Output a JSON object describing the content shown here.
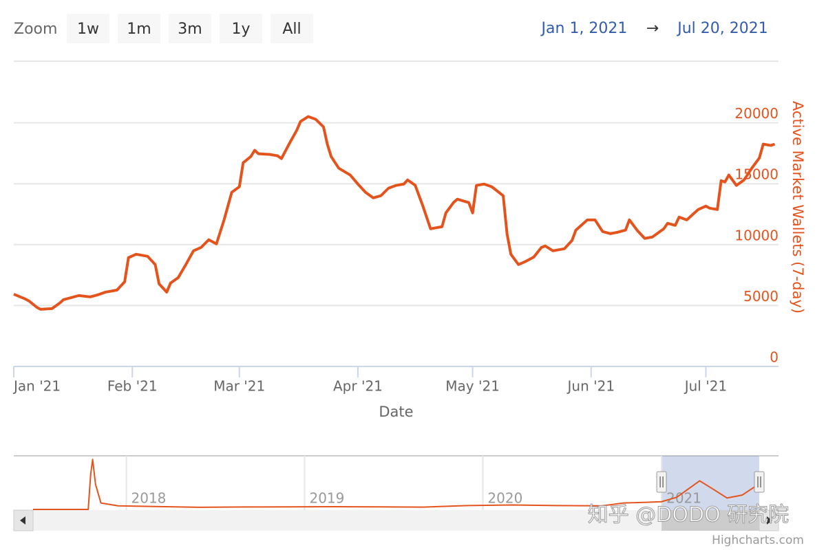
{
  "range_selector": {
    "zoom_label": "Zoom",
    "buttons": [
      "1w",
      "1m",
      "3m",
      "1y",
      "All"
    ],
    "from": "Jan 1, 2021",
    "arrow": "→",
    "to": "Jul 20, 2021"
  },
  "chart_data": [
    {
      "type": "line",
      "x_label": "Date",
      "y_label": "Active Market Wallets (7-day)",
      "y_axis_side": "right",
      "color": "#e5531d",
      "grid": true,
      "xlim": [
        "2021-01-01",
        "2021-07-20"
      ],
      "xticks": [
        {
          "value": "2021-01-01",
          "label": "Jan '21"
        },
        {
          "value": "2021-02-01",
          "label": "Feb '21"
        },
        {
          "value": "2021-03-01",
          "label": "Mar '21"
        },
        {
          "value": "2021-04-01",
          "label": "Apr '21"
        },
        {
          "value": "2021-05-01",
          "label": "May '21"
        },
        {
          "value": "2021-06-01",
          "label": "Jun '21"
        },
        {
          "value": "2021-07-01",
          "label": "Jul '21"
        }
      ],
      "ylim": [
        0,
        25000
      ],
      "yticks": [
        0,
        5000,
        10000,
        15000,
        20000
      ],
      "x": [
        "2021-01-01",
        "2021-01-04",
        "2021-01-05",
        "2021-01-07",
        "2021-01-08",
        "2021-01-11",
        "2021-01-13",
        "2021-01-14",
        "2021-01-18",
        "2021-01-21",
        "2021-01-23",
        "2021-01-25",
        "2021-01-28",
        "2021-01-30",
        "2021-01-31",
        "2021-02-02",
        "2021-02-05",
        "2021-02-07",
        "2021-02-08",
        "2021-02-10",
        "2021-02-11",
        "2021-02-13",
        "2021-02-15",
        "2021-02-17",
        "2021-02-19",
        "2021-02-21",
        "2021-02-23",
        "2021-02-25",
        "2021-02-27",
        "2021-03-01",
        "2021-03-02",
        "2021-03-04",
        "2021-03-05",
        "2021-03-06",
        "2021-03-09",
        "2021-03-11",
        "2021-03-12",
        "2021-03-14",
        "2021-03-16",
        "2021-03-17",
        "2021-03-19",
        "2021-03-21",
        "2021-03-23",
        "2021-03-24",
        "2021-03-25",
        "2021-03-27",
        "2021-03-30",
        "2021-04-01",
        "2021-04-03",
        "2021-04-05",
        "2021-04-07",
        "2021-04-09",
        "2021-04-11",
        "2021-04-13",
        "2021-04-14",
        "2021-04-16",
        "2021-04-18",
        "2021-04-20",
        "2021-04-23",
        "2021-04-24",
        "2021-04-26",
        "2021-04-27",
        "2021-04-30",
        "2021-05-01",
        "2021-05-02",
        "2021-05-04",
        "2021-05-06",
        "2021-05-09",
        "2021-05-10",
        "2021-05-11",
        "2021-05-13",
        "2021-05-15",
        "2021-05-17",
        "2021-05-19",
        "2021-05-20",
        "2021-05-22",
        "2021-05-25",
        "2021-05-27",
        "2021-05-28",
        "2021-05-31",
        "2021-06-02",
        "2021-06-04",
        "2021-06-06",
        "2021-06-08",
        "2021-06-10",
        "2021-06-11",
        "2021-06-13",
        "2021-06-15",
        "2021-06-17",
        "2021-06-20",
        "2021-06-21",
        "2021-06-23",
        "2021-06-24",
        "2021-06-26",
        "2021-06-29",
        "2021-07-01",
        "2021-07-02",
        "2021-07-04",
        "2021-07-05",
        "2021-07-06",
        "2021-07-07",
        "2021-07-09",
        "2021-07-11",
        "2021-07-13",
        "2021-07-15",
        "2021-07-16",
        "2021-07-18",
        "2021-07-19"
      ],
      "values": [
        5930,
        5540,
        5370,
        4860,
        4690,
        4750,
        5200,
        5480,
        5820,
        5710,
        5880,
        6100,
        6270,
        6950,
        8930,
        9210,
        9040,
        8360,
        6780,
        6100,
        6840,
        7290,
        8360,
        9490,
        9770,
        10400,
        10060,
        12030,
        14290,
        14750,
        16720,
        17230,
        17740,
        17460,
        17400,
        17290,
        17060,
        18250,
        19380,
        20110,
        20510,
        20280,
        19660,
        18250,
        17230,
        16270,
        15710,
        14970,
        14290,
        13840,
        14010,
        14630,
        14860,
        14970,
        15310,
        14860,
        13160,
        11300,
        11470,
        12600,
        13450,
        13730,
        13450,
        12600,
        14860,
        14970,
        14750,
        14010,
        10900,
        9210,
        8360,
        8640,
        8980,
        9770,
        9890,
        9490,
        9660,
        10340,
        11190,
        12030,
        12030,
        11070,
        10900,
        11020,
        11190,
        12030,
        11190,
        10510,
        10620,
        11300,
        11750,
        11580,
        12260,
        12030,
        12880,
        13160,
        12990,
        12880,
        15250,
        15140,
        15710,
        14860,
        15310,
        16270,
        17120,
        18250,
        18140,
        18250
      ]
    },
    {
      "type": "line",
      "color": "#e5531d",
      "x_grid": true,
      "xlim": [
        "2017-06-24",
        "2021-07-20"
      ],
      "xticks": [
        {
          "value": "2018-01-01",
          "label": "2018"
        },
        {
          "value": "2019-01-01",
          "label": "2019"
        },
        {
          "value": "2020-01-01",
          "label": "2020"
        },
        {
          "value": "2021-01-01",
          "label": "2021"
        }
      ],
      "ylim": [
        0,
        38000
      ],
      "x": [
        "2017-06-24",
        "2017-10-15",
        "2017-10-20",
        "2017-10-24",
        "2017-10-30",
        "2017-11-10",
        "2017-12-15",
        "2018-03-01",
        "2018-06-01",
        "2018-09-01",
        "2018-12-01",
        "2019-03-01",
        "2019-06-01",
        "2019-09-01",
        "2019-12-01",
        "2020-03-01",
        "2020-06-01",
        "2020-09-01",
        "2020-10-15",
        "2020-12-01",
        "2021-01-01",
        "2021-02-01",
        "2021-03-20",
        "2021-04-15",
        "2021-05-15",
        "2021-06-15",
        "2021-07-19"
      ],
      "values": [
        500,
        500,
        25000,
        35500,
        18000,
        5000,
        3000,
        2500,
        2000,
        2200,
        2300,
        2400,
        2300,
        2100,
        3200,
        3600,
        3200,
        3000,
        5000,
        5500,
        5900,
        9000,
        20500,
        15000,
        8500,
        10500,
        18200
      ]
    }
  ],
  "watermark": "知乎 @DODO 研究院",
  "credits": "Highcharts.com"
}
